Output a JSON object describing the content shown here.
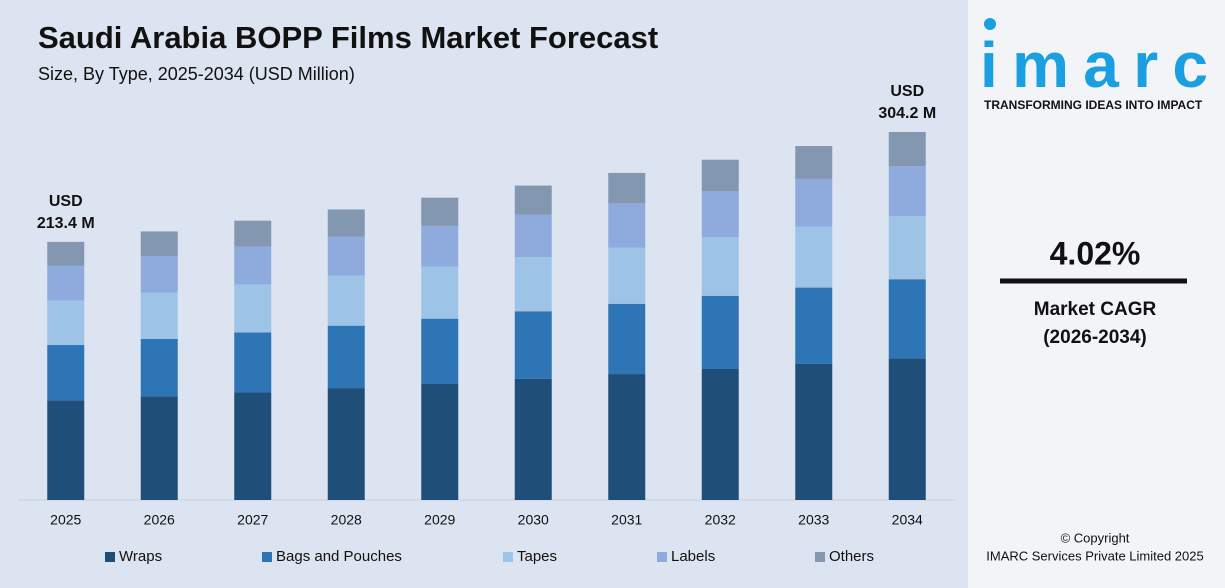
{
  "chart_data": {
    "type": "stacked_bar",
    "title": "Saudi Arabia BOPP Films Market Forecast",
    "subtitle": "Size, By Type, 2025-2034 (USD Million)",
    "categories": [
      "2025",
      "2026",
      "2027",
      "2028",
      "2029",
      "2030",
      "2031",
      "2032",
      "2033",
      "2034"
    ],
    "series": [
      {
        "name": "Wraps",
        "color": "#1f4e79",
        "values": [
          82.2,
          85.5,
          88.9,
          92.5,
          96.2,
          100.1,
          104.1,
          108.3,
          112.7,
          117.1
        ]
      },
      {
        "name": "Bags and Pouches",
        "color": "#2e75b6",
        "values": [
          45.9,
          47.7,
          49.6,
          51.6,
          53.7,
          55.9,
          58.1,
          60.5,
          62.9,
          65.4
        ]
      },
      {
        "name": "Tapes",
        "color": "#9dc3e6",
        "values": [
          36.7,
          38.2,
          39.7,
          41.3,
          43.0,
          44.7,
          46.5,
          48.4,
          50.3,
          52.3
        ]
      },
      {
        "name": "Labels",
        "color": "#8faadc",
        "values": [
          28.8,
          30.0,
          31.2,
          32.4,
          33.7,
          35.1,
          36.5,
          38.0,
          39.5,
          41.1
        ]
      },
      {
        "name": "Others",
        "color": "#8497b0",
        "values": [
          19.8,
          20.6,
          21.5,
          22.4,
          23.3,
          24.1,
          25.2,
          26.1,
          27.2,
          28.3
        ]
      }
    ],
    "annotations": [
      {
        "x": "2025",
        "lines": [
          "USD",
          "213.4 M"
        ]
      },
      {
        "x": "2034",
        "lines": [
          "USD",
          "304.2 M"
        ]
      }
    ]
  },
  "side_panel": {
    "logo": "imarc",
    "tagline": "TRANSFORMING IDEAS INTO IMPACT",
    "cagr": "4.02%",
    "cagr_label": "Market CAGR",
    "cagr_period": "(2026-2034)",
    "copyright": "© Copyright",
    "company": "IMARC Services Private Limited 2025"
  }
}
